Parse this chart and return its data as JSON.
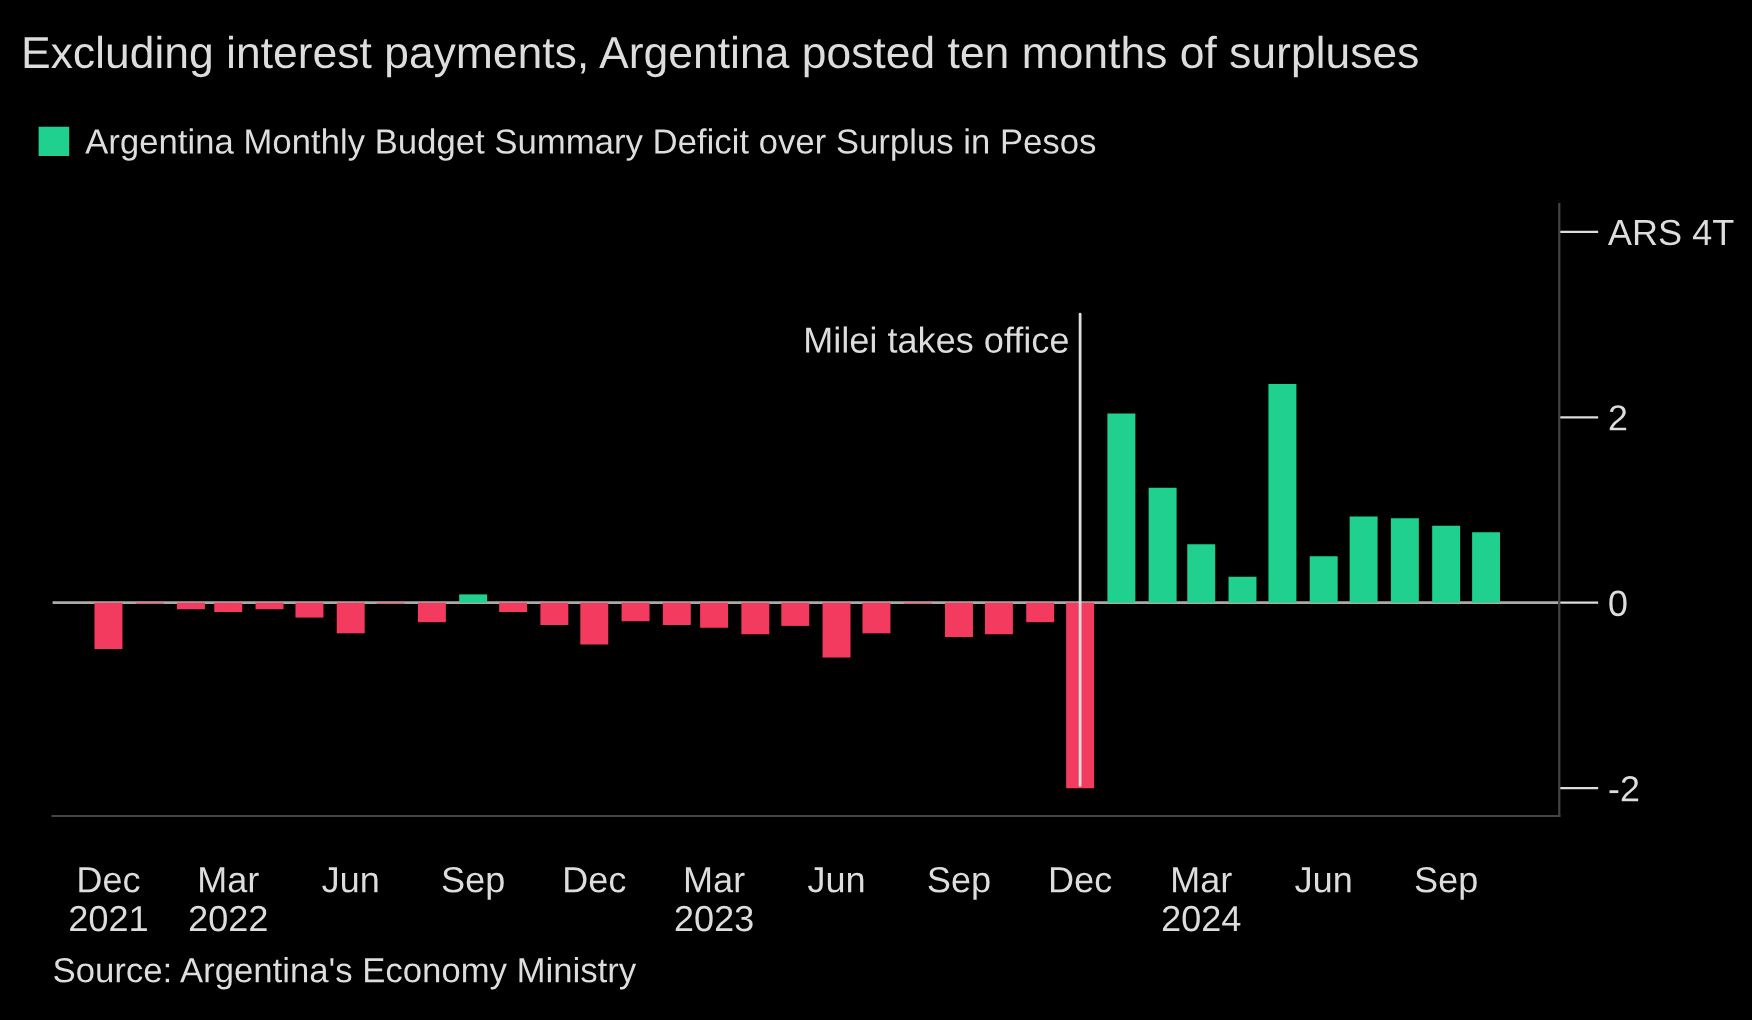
{
  "chart_data": {
    "type": "bar",
    "title": "Excluding interest payments, Argentina posted ten months of surpluses",
    "x": [
      "2021-12",
      "2022-01",
      "2022-02",
      "2022-03",
      "2022-04",
      "2022-05",
      "2022-06",
      "2022-07",
      "2022-08",
      "2022-09",
      "2022-10",
      "2022-11",
      "2022-12",
      "2023-01",
      "2023-02",
      "2023-03",
      "2023-04",
      "2023-05",
      "2023-06",
      "2023-07",
      "2023-08",
      "2023-09",
      "2023-10",
      "2023-11",
      "2023-12",
      "2024-01",
      "2024-02",
      "2024-03",
      "2024-04",
      "2024-05",
      "2024-06",
      "2024-07",
      "2024-08",
      "2024-09",
      "2024-10"
    ],
    "series": [
      {
        "name": "Argentina Monthly Budget Summary Deficit over Surplus in Pesos",
        "color": "#1fd08e",
        "values": [
          null,
          null,
          null,
          null,
          null,
          null,
          null,
          null,
          null,
          0.09,
          null,
          null,
          null,
          null,
          null,
          null,
          null,
          null,
          null,
          null,
          null,
          null,
          null,
          null,
          null,
          2.04,
          1.24,
          0.63,
          0.28,
          2.36,
          0.5,
          0.93,
          0.91,
          0.83,
          0.76
        ]
      },
      {
        "color": "#f23b5e",
        "values": [
          -0.5,
          -0.01,
          -0.07,
          -0.1,
          -0.07,
          -0.16,
          -0.33,
          -0.01,
          -0.21,
          null,
          -0.1,
          -0.24,
          -0.45,
          -0.2,
          -0.24,
          -0.27,
          -0.34,
          -0.25,
          -0.59,
          -0.33,
          -0.01,
          -0.37,
          -0.34,
          -0.21,
          -2.0,
          null,
          null,
          null,
          null,
          null,
          null,
          null,
          null,
          null,
          null
        ]
      }
    ],
    "xlim": [
      "2021-10-20",
      "2024-11-25"
    ],
    "xticks": [
      {
        "value": "2021-12",
        "label": "Dec\n2021"
      },
      {
        "value": "2022-03",
        "label": "Mar\n2022"
      },
      {
        "value": "2022-06",
        "label": "Jun"
      },
      {
        "value": "2022-09",
        "label": "Sep"
      },
      {
        "value": "2022-12",
        "label": "Dec"
      },
      {
        "value": "2023-03",
        "label": "Mar\n2023"
      },
      {
        "value": "2023-06",
        "label": "Jun"
      },
      {
        "value": "2023-09",
        "label": "Sep"
      },
      {
        "value": "2023-12",
        "label": "Dec"
      },
      {
        "value": "2024-03",
        "label": "Mar\n2024"
      },
      {
        "value": "2024-06",
        "label": "Jun"
      },
      {
        "value": "2024-09",
        "label": "Sep"
      }
    ],
    "ylim": [
      -2.3,
      4.3
    ],
    "yticks": [
      -2,
      0,
      2,
      {
        "value": 4,
        "label": "ARS 4T"
      }
    ],
    "ref_lines": [
      {
        "axis": "x",
        "value": "2023-12",
        "label": "Milei takes office",
        "color": "#dddddd"
      }
    ],
    "legend": "top left",
    "grid": false,
    "annotations": [
      "Source: Argentina's Economy Ministry"
    ]
  }
}
